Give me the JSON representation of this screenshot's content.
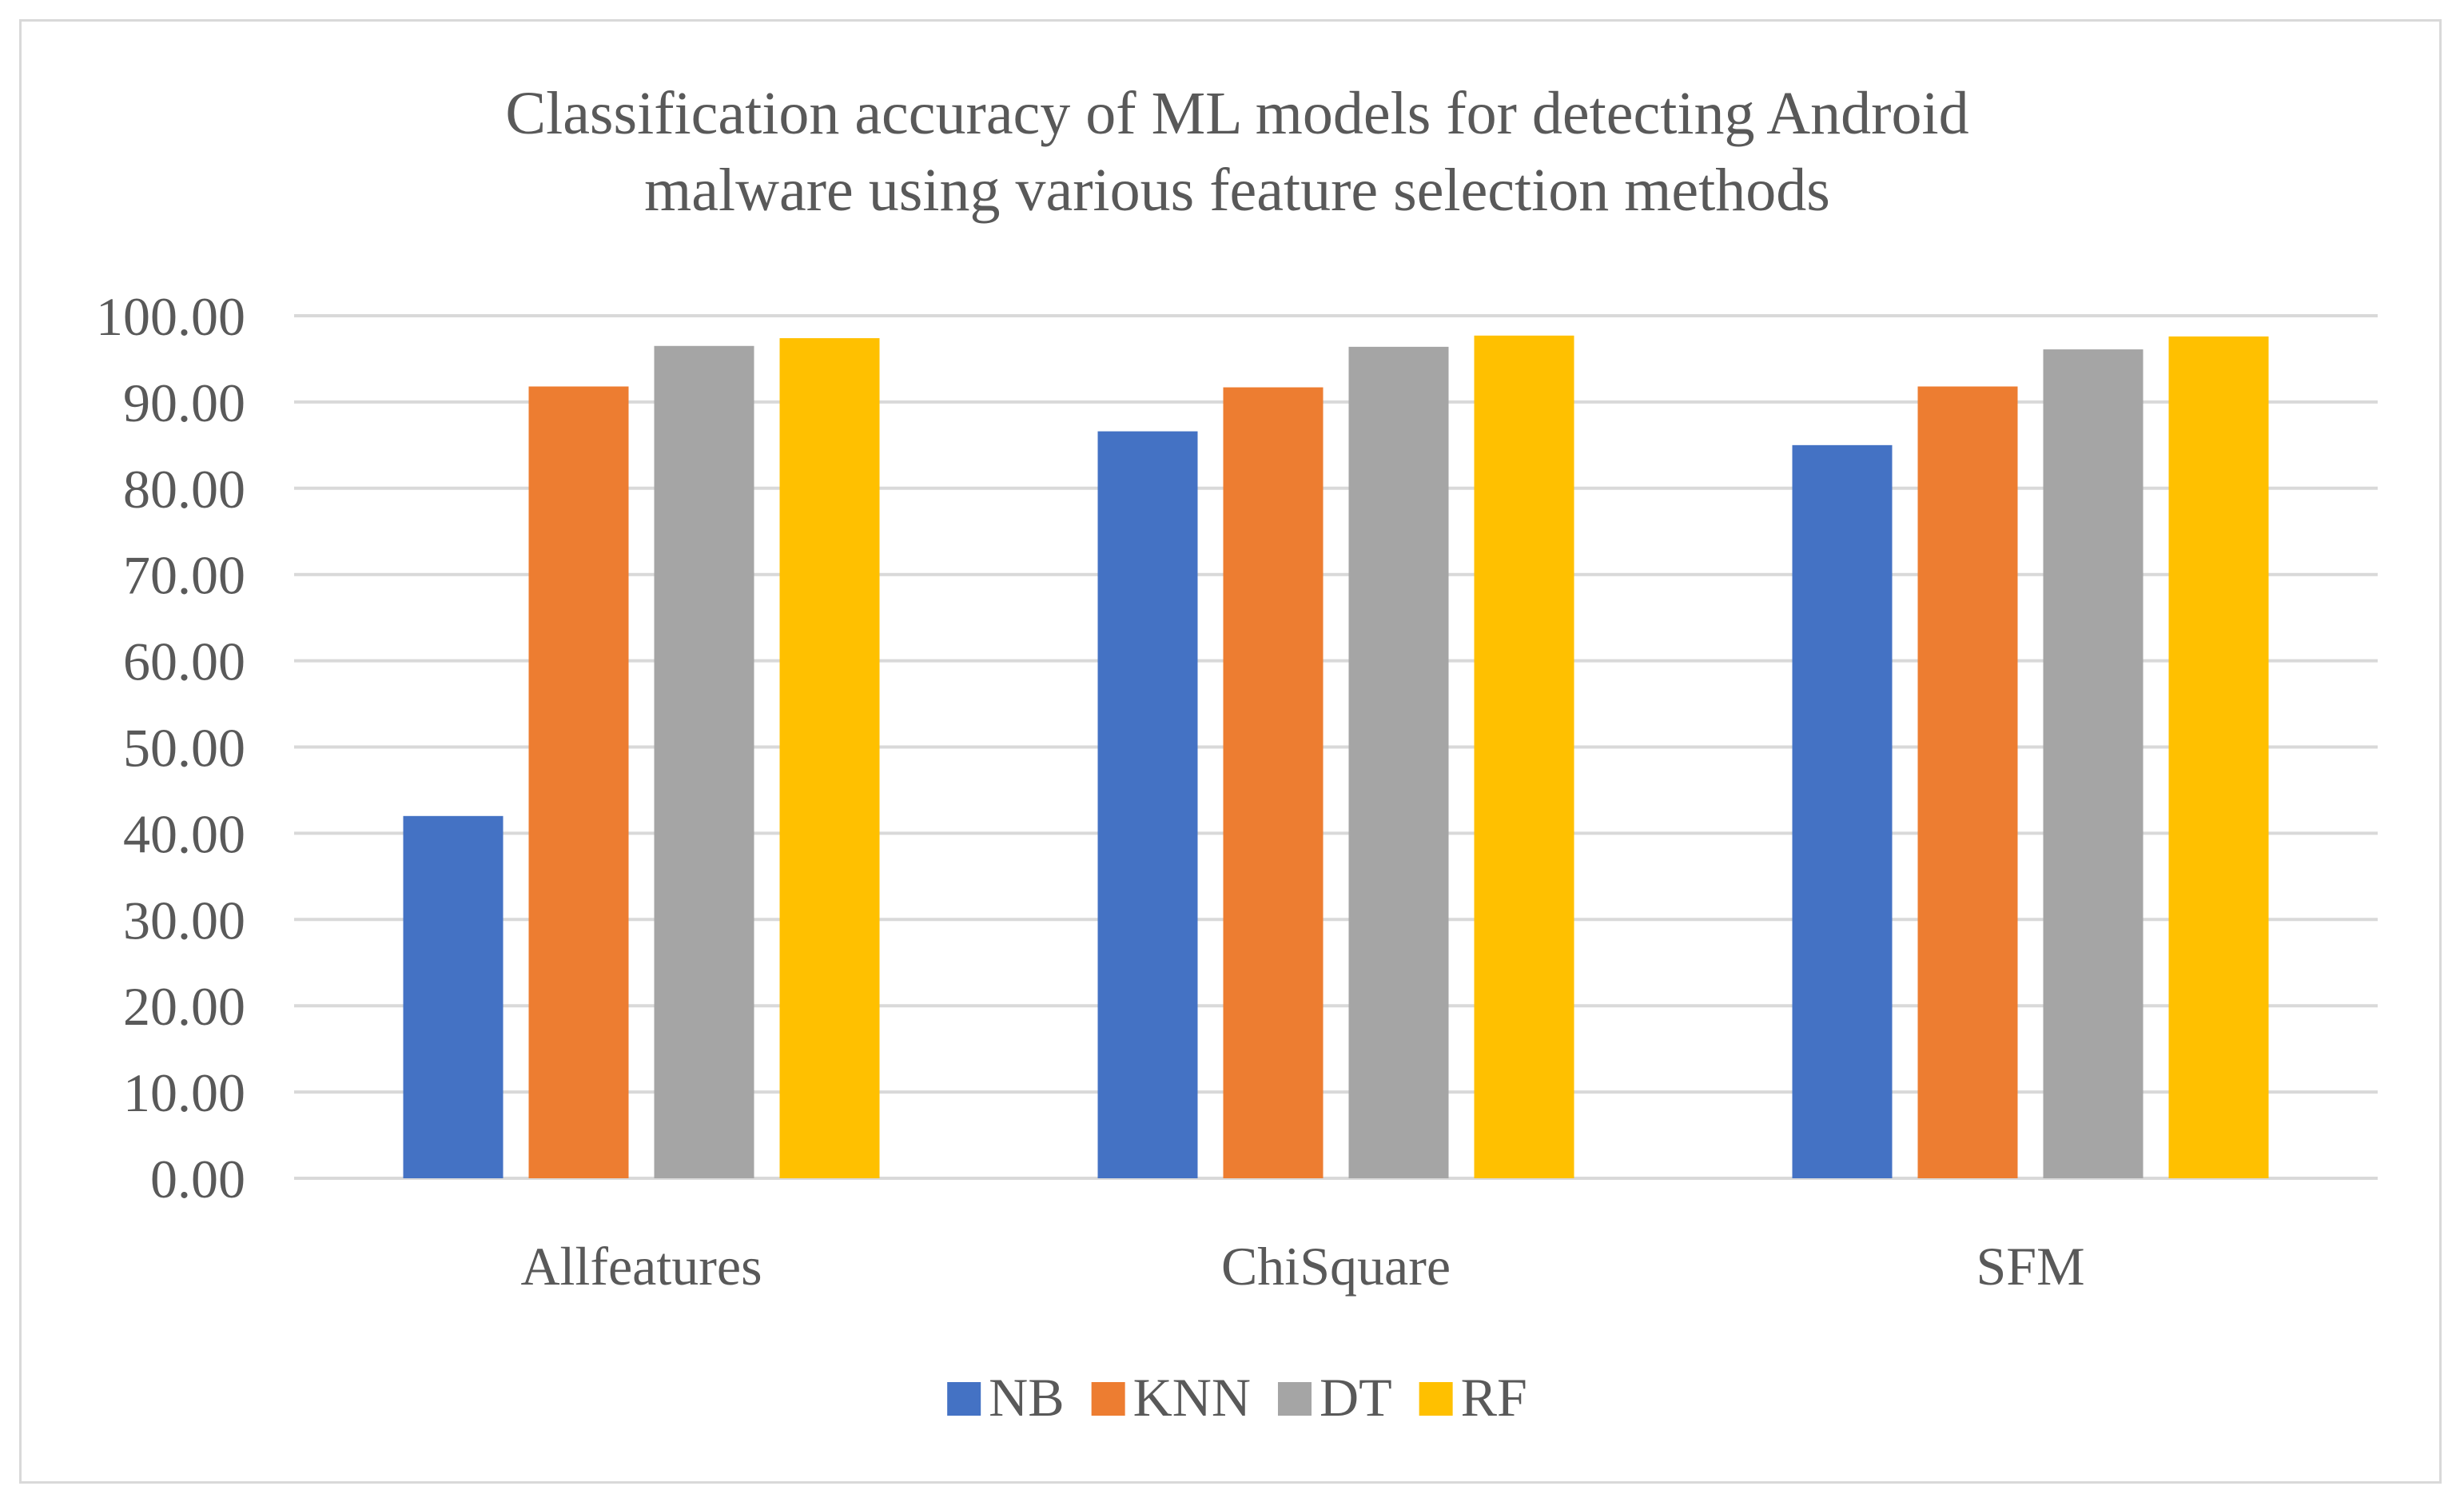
{
  "chart_data": {
    "type": "bar",
    "title_lines": [
      "Classification accuracy of ML models for detecting Android",
      "malware using various feature selection methods"
    ],
    "categories": [
      "Allfeatures",
      "ChiSquare",
      "SFM"
    ],
    "series": [
      {
        "name": "NB",
        "color": "#4472c4",
        "values": [
          42.0,
          86.6,
          85.0
        ]
      },
      {
        "name": "KNN",
        "color": "#ed7d31",
        "values": [
          91.8,
          91.7,
          91.8
        ]
      },
      {
        "name": "DT",
        "color": "#a5a5a5",
        "values": [
          96.5,
          96.4,
          96.1
        ]
      },
      {
        "name": "RF",
        "color": "#ffc000",
        "values": [
          97.4,
          97.7,
          97.6
        ]
      }
    ],
    "y_ticks": [
      "0.00",
      "10.00",
      "20.00",
      "30.00",
      "40.00",
      "50.00",
      "60.00",
      "70.00",
      "80.00",
      "90.00",
      "100.00"
    ],
    "ylim": [
      0,
      100
    ],
    "grid": true,
    "legend_position": "bottom",
    "gridline_color": "#d9d9d9",
    "text_color": "#595959"
  }
}
